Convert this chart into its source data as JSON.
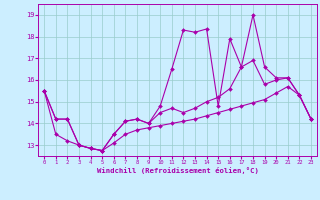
{
  "xlabel": "Windchill (Refroidissement éolien,°C)",
  "xlim": [
    -0.5,
    23.5
  ],
  "ylim": [
    12.5,
    19.5
  ],
  "yticks": [
    13,
    14,
    15,
    16,
    17,
    18,
    19
  ],
  "xticks": [
    0,
    1,
    2,
    3,
    4,
    5,
    6,
    7,
    8,
    9,
    10,
    11,
    12,
    13,
    14,
    15,
    16,
    17,
    18,
    19,
    20,
    21,
    22,
    23
  ],
  "background_color": "#cceeff",
  "line_color": "#aa00aa",
  "grid_color": "#99cccc",
  "lines": [
    {
      "x": [
        0,
        1,
        2,
        3,
        4,
        5,
        6,
        7,
        8,
        9,
        10,
        11,
        12,
        13,
        14,
        15,
        16,
        17,
        18,
        19,
        20,
        21,
        22,
        23
      ],
      "y": [
        15.5,
        14.2,
        14.2,
        13.0,
        12.85,
        12.75,
        13.5,
        14.1,
        14.2,
        14.0,
        14.8,
        16.5,
        18.3,
        18.2,
        18.35,
        14.8,
        17.9,
        16.6,
        19.0,
        16.6,
        16.1,
        16.1,
        15.3,
        14.2
      ]
    },
    {
      "x": [
        0,
        1,
        2,
        3,
        4,
        5,
        6,
        7,
        8,
        9,
        10,
        11,
        12,
        13,
        14,
        15,
        16,
        17,
        18,
        19,
        20,
        21,
        22,
        23
      ],
      "y": [
        15.5,
        14.2,
        14.2,
        13.0,
        12.85,
        12.75,
        13.5,
        14.1,
        14.2,
        14.0,
        14.5,
        14.7,
        14.5,
        14.7,
        15.0,
        15.2,
        15.6,
        16.6,
        16.9,
        15.8,
        16.0,
        16.1,
        15.3,
        14.2
      ]
    },
    {
      "x": [
        0,
        1,
        2,
        3,
        4,
        5,
        6,
        7,
        8,
        9,
        10,
        11,
        12,
        13,
        14,
        15,
        16,
        17,
        18,
        19,
        20,
        21,
        22,
        23
      ],
      "y": [
        15.5,
        13.5,
        13.2,
        13.0,
        12.85,
        12.75,
        13.1,
        13.5,
        13.7,
        13.8,
        13.9,
        14.0,
        14.1,
        14.2,
        14.35,
        14.5,
        14.65,
        14.8,
        14.95,
        15.1,
        15.4,
        15.7,
        15.3,
        14.2
      ]
    }
  ]
}
